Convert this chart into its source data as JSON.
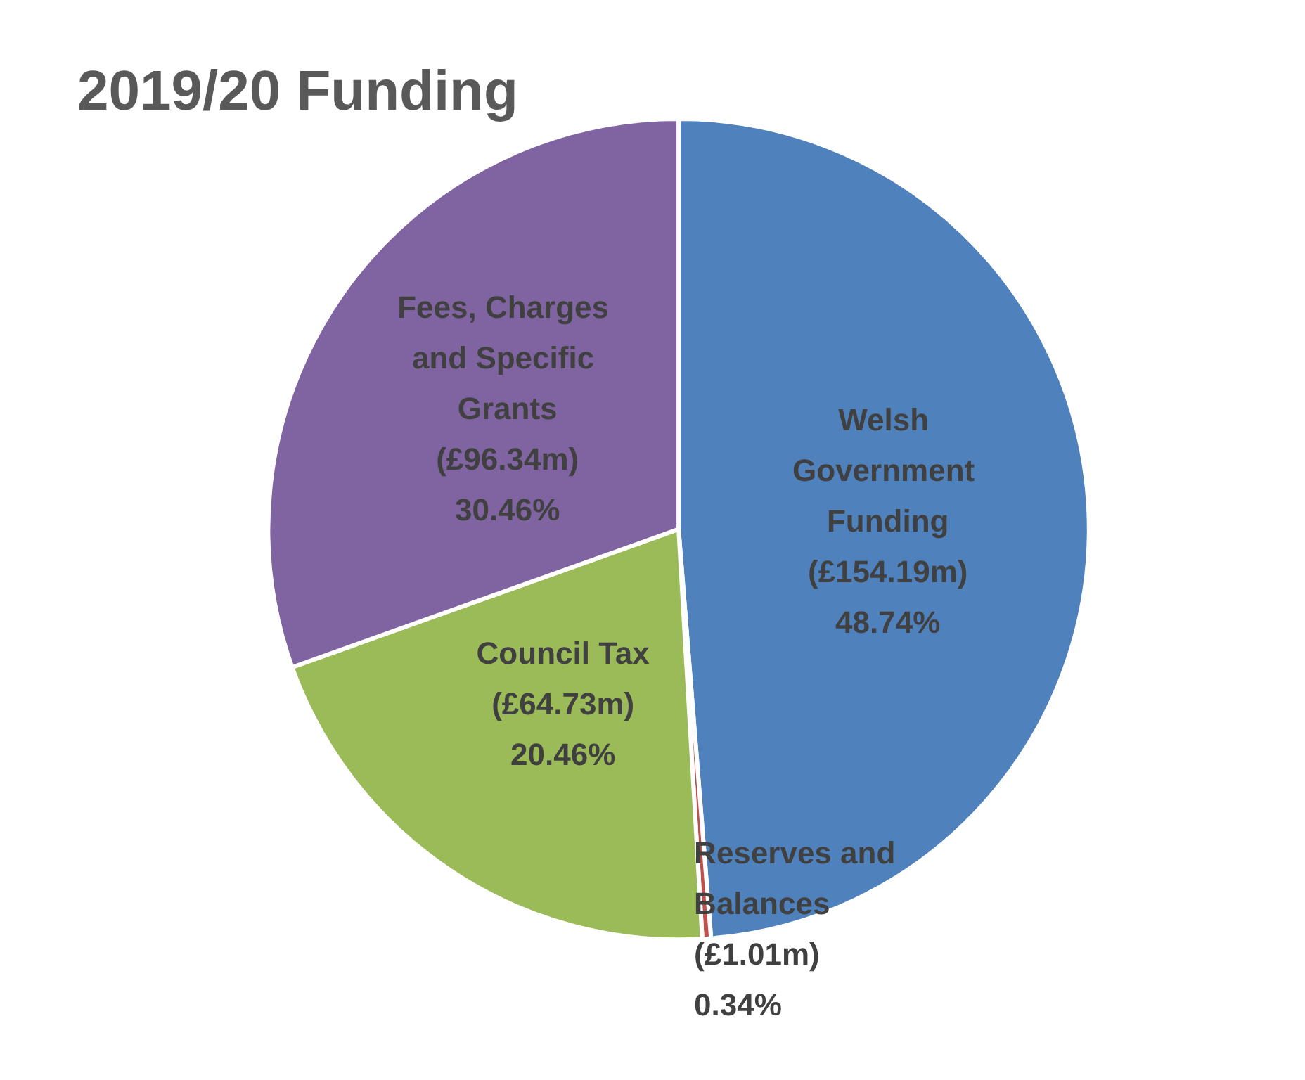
{
  "chart_data": {
    "type": "pie",
    "title": "2019/20 Funding",
    "categories": [
      "Welsh Government Funding",
      "Reserves and Balances",
      "Council Tax",
      "Fees, Charges and Specific Grants"
    ],
    "values": [
      48.74,
      0.34,
      20.46,
      30.46
    ],
    "value_labels": [
      "(£154.19m)\n48.74%",
      "(£1.01m)\n0.34%",
      "(£64.73m)\n20.46%",
      "(£96.34m)\n30.46%"
    ],
    "colors": [
      "#4f81bd",
      "#c0504d",
      "#9bbb59",
      "#8064a2"
    ],
    "legend": false
  }
}
